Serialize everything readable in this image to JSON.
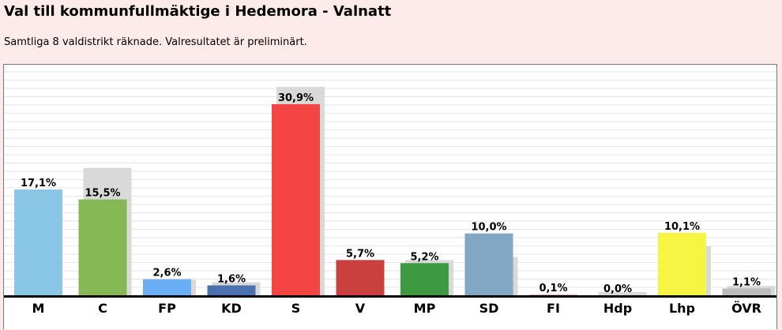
{
  "header": {
    "title": "Val till kommunfullmäktige i Hedemora - Valnatt",
    "subtitle": "Samtliga 8 valdistrikt räknade. Valresultatet är preliminärt."
  },
  "chart_data": {
    "type": "bar",
    "categories": [
      "M",
      "C",
      "FP",
      "KD",
      "S",
      "V",
      "MP",
      "SD",
      "FI",
      "Hdp",
      "Lhp",
      "ÖVR"
    ],
    "values": [
      17.1,
      15.5,
      2.6,
      1.6,
      30.9,
      5.7,
      5.2,
      10.0,
      0.1,
      0.0,
      10.1,
      1.1
    ],
    "value_labels": [
      "17,1%",
      "15,5%",
      "2,6%",
      "1,6%",
      "30,9%",
      "5,7%",
      "5,2%",
      "10,0%",
      "0,1%",
      "0,0%",
      "10,1%",
      "1,1%"
    ],
    "previous_values": [
      null,
      20.6,
      2.5,
      2.1,
      33.7,
      null,
      5.7,
      6.2,
      null,
      0.5,
      7.9,
      1.5
    ],
    "colors": [
      "#8ac7e6",
      "#86b955",
      "#6aaef5",
      "#4a72b0",
      "#f44444",
      "#c9403f",
      "#3e9a40",
      "#82a7c2",
      "#e8a0c8",
      "#999999",
      "#f6f544",
      "#bcbcbc"
    ],
    "shadow_color": "#d9d9d9",
    "ylim": [
      0,
      36
    ],
    "grid": true,
    "xlabel": "",
    "ylabel": ""
  }
}
